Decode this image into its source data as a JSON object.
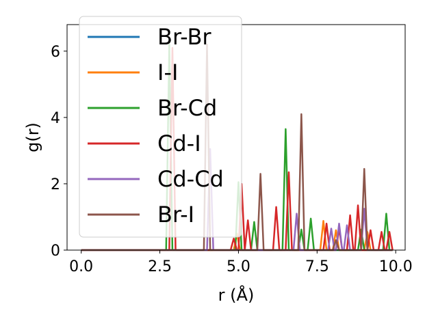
{
  "chart_data": {
    "type": "line",
    "title": "",
    "xlabel": "r (Å)",
    "ylabel": "g(r)",
    "xlim": [
      -0.45,
      10.3
    ],
    "ylim": [
      0,
      6.8
    ],
    "xticks": [
      0.0,
      2.5,
      5.0,
      7.5,
      10.0
    ],
    "xtick_labels": [
      "0.0",
      "2.5",
      "5.0",
      "7.5",
      "10.0"
    ],
    "yticks": [
      0,
      2,
      4,
      6
    ],
    "ytick_labels": [
      "0",
      "2",
      "4",
      "6"
    ],
    "grid": false,
    "legend_position": "top-left",
    "series": [
      {
        "name": "Br-Br",
        "color": "#1f77b4",
        "points": [
          [
            0,
            0
          ],
          [
            9.9,
            0
          ]
        ]
      },
      {
        "name": "I-I",
        "color": "#ff7f0e",
        "points": [
          [
            0,
            0
          ],
          [
            4.85,
            0
          ],
          [
            4.95,
            0.5
          ],
          [
            5.05,
            0
          ],
          [
            7.6,
            0
          ],
          [
            7.7,
            0.88
          ],
          [
            7.8,
            0
          ],
          [
            8.0,
            0
          ],
          [
            8.1,
            0.6
          ],
          [
            8.2,
            0
          ],
          [
            9.0,
            0
          ],
          [
            9.1,
            0.55
          ],
          [
            9.2,
            0
          ],
          [
            9.9,
            0
          ]
        ]
      },
      {
        "name": "Br-Cd",
        "color": "#2ca02c",
        "points": [
          [
            0,
            0
          ],
          [
            2.7,
            0
          ],
          [
            2.8,
            6.2
          ],
          [
            2.9,
            0
          ],
          [
            4.9,
            0
          ],
          [
            5.0,
            2.05
          ],
          [
            5.1,
            0
          ],
          [
            5.4,
            0
          ],
          [
            5.5,
            0.85
          ],
          [
            5.6,
            0
          ],
          [
            6.4,
            0
          ],
          [
            6.5,
            3.65
          ],
          [
            6.6,
            0
          ],
          [
            6.9,
            0
          ],
          [
            7.0,
            0.62
          ],
          [
            7.1,
            0
          ],
          [
            7.2,
            0
          ],
          [
            7.3,
            0.95
          ],
          [
            7.4,
            0
          ],
          [
            8.8,
            0
          ],
          [
            8.9,
            0.62
          ],
          [
            9.0,
            0
          ],
          [
            9.6,
            0
          ],
          [
            9.7,
            1.1
          ],
          [
            9.8,
            0
          ],
          [
            9.9,
            0
          ]
        ]
      },
      {
        "name": "Cd-I",
        "color": "#d62728",
        "points": [
          [
            0,
            0
          ],
          [
            2.8,
            0
          ],
          [
            2.9,
            6.1
          ],
          [
            3.0,
            0
          ],
          [
            4.75,
            0
          ],
          [
            4.85,
            0.35
          ],
          [
            4.95,
            0
          ],
          [
            5.0,
            0
          ],
          [
            5.1,
            2.0
          ],
          [
            5.2,
            0
          ],
          [
            5.2,
            0
          ],
          [
            5.3,
            0.9
          ],
          [
            5.4,
            0
          ],
          [
            6.1,
            0
          ],
          [
            6.2,
            1.3
          ],
          [
            6.3,
            0
          ],
          [
            6.5,
            0
          ],
          [
            6.6,
            2.35
          ],
          [
            6.7,
            0
          ],
          [
            7.7,
            0
          ],
          [
            7.8,
            0.8
          ],
          [
            7.9,
            0
          ],
          [
            8.1,
            0
          ],
          [
            8.2,
            0.65
          ],
          [
            8.3,
            0
          ],
          [
            8.45,
            0
          ],
          [
            8.55,
            1.05
          ],
          [
            8.65,
            0
          ],
          [
            8.7,
            0
          ],
          [
            8.8,
            1.35
          ],
          [
            8.9,
            0
          ],
          [
            9.1,
            0
          ],
          [
            9.2,
            0.6
          ],
          [
            9.3,
            0
          ],
          [
            9.45,
            0
          ],
          [
            9.55,
            0.55
          ],
          [
            9.65,
            0
          ],
          [
            9.7,
            0
          ],
          [
            9.8,
            0.55
          ],
          [
            9.9,
            0
          ]
        ]
      },
      {
        "name": "Cd-Cd",
        "color": "#9467bd",
        "points": [
          [
            0,
            0
          ],
          [
            4.0,
            0
          ],
          [
            4.1,
            3.05
          ],
          [
            4.2,
            0
          ],
          [
            6.75,
            0
          ],
          [
            6.85,
            1.1
          ],
          [
            6.95,
            0
          ],
          [
            7.85,
            0
          ],
          [
            7.95,
            0.65
          ],
          [
            8.05,
            0
          ],
          [
            8.1,
            0
          ],
          [
            8.2,
            0.8
          ],
          [
            8.3,
            0
          ],
          [
            8.35,
            0
          ],
          [
            8.45,
            0.75
          ],
          [
            8.55,
            0
          ],
          [
            8.9,
            0
          ],
          [
            9.0,
            1.25
          ],
          [
            9.1,
            0
          ],
          [
            9.9,
            0
          ]
        ]
      },
      {
        "name": "Br-I",
        "color": "#8c564b",
        "points": [
          [
            0,
            0
          ],
          [
            3.9,
            0
          ],
          [
            4.0,
            6.2
          ],
          [
            4.1,
            0
          ],
          [
            5.6,
            0
          ],
          [
            5.7,
            2.3
          ],
          [
            5.8,
            0
          ],
          [
            6.9,
            0
          ],
          [
            7.0,
            4.1
          ],
          [
            7.1,
            0
          ],
          [
            8.0,
            0
          ],
          [
            8.1,
            0.3
          ],
          [
            8.2,
            0
          ],
          [
            8.9,
            0
          ],
          [
            9.0,
            2.45
          ],
          [
            9.1,
            0
          ],
          [
            9.9,
            0
          ]
        ]
      }
    ]
  }
}
